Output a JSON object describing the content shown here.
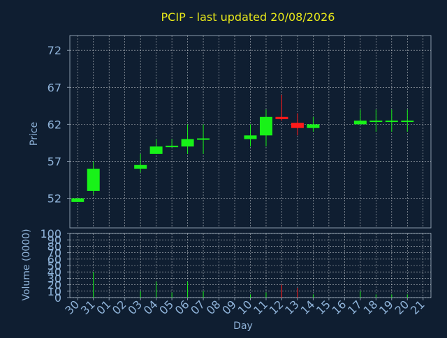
{
  "chart_data": {
    "type": "candlestick",
    "title": "PCIP - last updated 20/08/2026",
    "xlabel": "Day",
    "price_panel": {
      "ylabel": "Price",
      "ylim": [
        48,
        74
      ],
      "yticks": [
        52,
        57,
        62,
        67,
        72
      ],
      "grid": true
    },
    "volume_panel": {
      "ylabel": "Volume (0000)",
      "ylim": [
        0,
        100
      ],
      "yticks": [
        0,
        10,
        20,
        30,
        40,
        50,
        60,
        70,
        80,
        90,
        100
      ],
      "grid": true
    },
    "categories": [
      "30",
      "31",
      "01",
      "02",
      "03",
      "04",
      "05",
      "06",
      "07",
      "08",
      "09",
      "10",
      "11",
      "12",
      "13",
      "14",
      "15",
      "16",
      "17",
      "18",
      "19",
      "20",
      "21"
    ],
    "candles": [
      {
        "day": "30",
        "open": 51.5,
        "high": 52.0,
        "low": 51.5,
        "close": 52.0,
        "volume": 0
      },
      {
        "day": "31",
        "open": 53.0,
        "high": 57.0,
        "low": 52.5,
        "close": 56.0,
        "volume": 40
      },
      {
        "day": "03",
        "open": 56.0,
        "high": 58.0,
        "low": 55.5,
        "close": 56.5,
        "volume": 10
      },
      {
        "day": "04",
        "open": 58.0,
        "high": 60.0,
        "low": 58.0,
        "close": 59.0,
        "volume": 25
      },
      {
        "day": "05",
        "open": 59.0,
        "high": 60.0,
        "low": 59.0,
        "close": 59.1,
        "volume": 8
      },
      {
        "day": "06",
        "open": 59.0,
        "high": 62.0,
        "low": 58.0,
        "close": 60.0,
        "volume": 25
      },
      {
        "day": "07",
        "open": 60.0,
        "high": 62.0,
        "low": 58.0,
        "close": 60.1,
        "volume": 10
      },
      {
        "day": "10",
        "open": 60.0,
        "high": 62.0,
        "low": 59.0,
        "close": 60.5,
        "volume": 5
      },
      {
        "day": "11",
        "open": 60.5,
        "high": 64.0,
        "low": 59.0,
        "close": 63.0,
        "volume": 8
      },
      {
        "day": "12",
        "open": 63.0,
        "high": 66.0,
        "low": 62.5,
        "close": 62.7,
        "volume": 20
      },
      {
        "day": "13",
        "open": 62.2,
        "high": 63.5,
        "low": 60.5,
        "close": 61.5,
        "volume": 15
      },
      {
        "day": "14",
        "open": 61.5,
        "high": 63.0,
        "low": 61.0,
        "close": 62.0,
        "volume": 5
      },
      {
        "day": "17",
        "open": 62.0,
        "high": 64.0,
        "low": 62.0,
        "close": 62.5,
        "volume": 10
      },
      {
        "day": "18",
        "open": 62.4,
        "high": 64.0,
        "low": 61.0,
        "close": 62.5,
        "volume": 5
      },
      {
        "day": "19",
        "open": 62.4,
        "high": 64.0,
        "low": 61.0,
        "close": 62.5,
        "volume": 5
      },
      {
        "day": "20",
        "open": 62.4,
        "high": 64.0,
        "low": 61.0,
        "close": 62.5,
        "volume": 5
      }
    ],
    "colors": {
      "background": "#0f1e31",
      "text": "#8fb3d9",
      "title": "#e8e81a",
      "axis": "#8899aa",
      "grid": "#ffffff",
      "up": "#18f218",
      "down": "#ff1a1a",
      "frame": "#8899aa"
    }
  }
}
